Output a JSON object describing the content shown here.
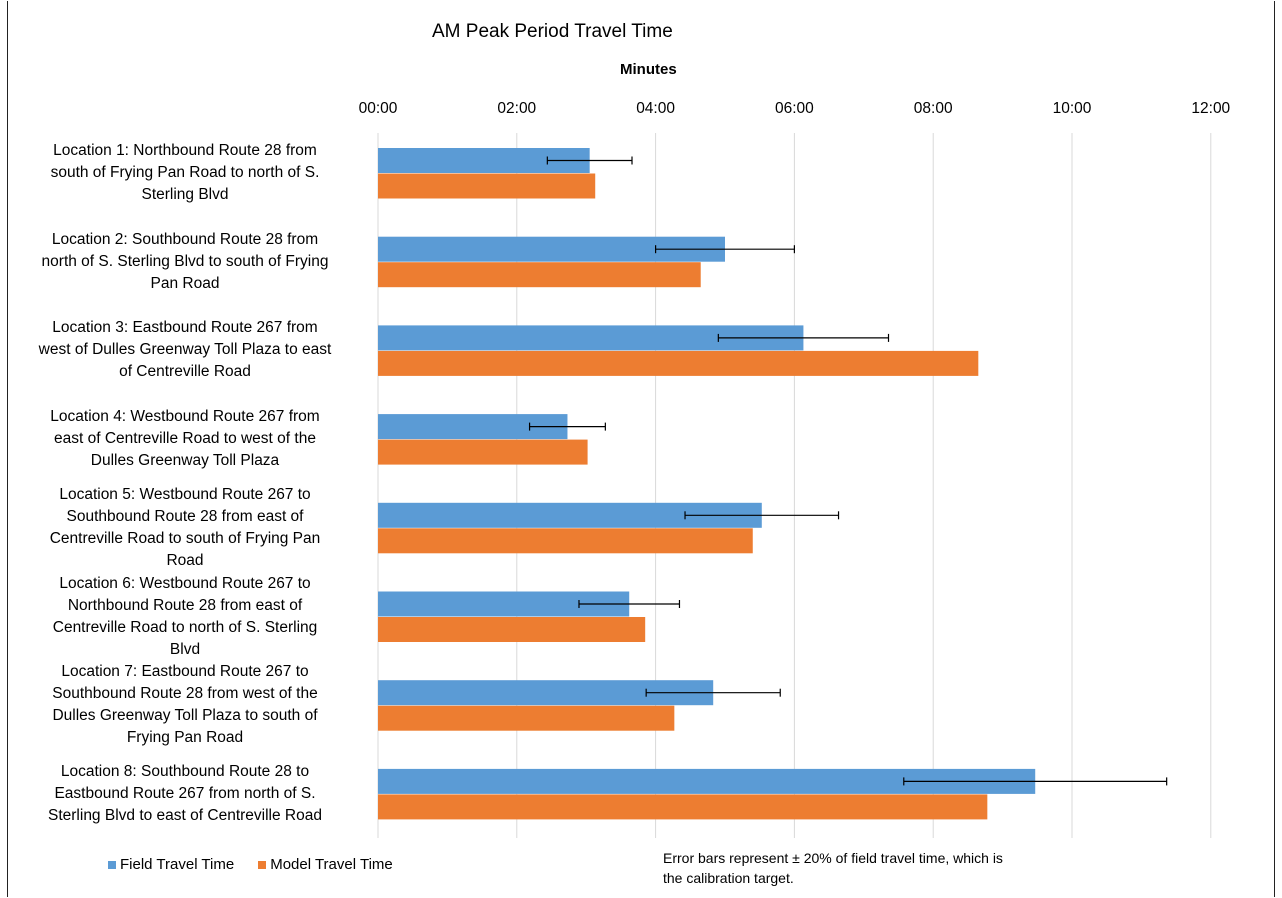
{
  "chart_data": {
    "type": "bar",
    "orientation": "horizontal",
    "title": "AM Peak Period Travel Time",
    "xlabel": "Minutes",
    "ylabel": "",
    "xlim": [
      0,
      12
    ],
    "x_ticks": [
      "00:00",
      "02:00",
      "04:00",
      "06:00",
      "08:00",
      "10:00",
      "12:00"
    ],
    "x_tick_values": [
      0,
      2,
      4,
      6,
      8,
      10,
      12
    ],
    "grid": "vertical",
    "legend_position": "bottom-left",
    "categories": [
      "Location 1: Northbound Route 28 from south of Frying Pan Road to north of S. Sterling Blvd",
      "Location 2: Southbound Route 28 from north of S. Sterling Blvd to south of Frying Pan Road",
      "Location 3: Eastbound Route 267 from west of Dulles Greenway Toll Plaza to east of Centreville Road",
      "Location 4: Westbound Route 267 from east of Centreville Road to west of the Dulles Greenway Toll Plaza",
      "Location 5: Westbound Route 267 to Southbound Route 28 from east of Centreville Road to south of Frying Pan Road",
      "Location 6: Westbound Route 267 to Northbound Route 28 from east of Centreville Road to north of S. Sterling Blvd",
      "Location 7: Eastbound Route 267 to Southbound Route 28 from west of the Dulles Greenway Toll Plaza to south of Frying Pan Road",
      "Location 8: Southbound Route 28 to Eastbound Route 267 from north of S. Sterling Blvd to east of Centreville Road"
    ],
    "category_label_lines": [
      [
        "Location 1: Northbound Route 28 from",
        "south of Frying Pan Road to north of S.",
        "Sterling Blvd"
      ],
      [
        "Location 2: Southbound Route 28 from",
        "north of S. Sterling Blvd to south of Frying",
        "Pan Road"
      ],
      [
        "Location 3: Eastbound Route 267 from",
        "west of Dulles Greenway Toll Plaza to east",
        "of Centreville Road"
      ],
      [
        "Location 4: Westbound Route 267 from",
        "east of Centreville Road to west of the",
        "Dulles Greenway Toll Plaza"
      ],
      [
        "Location 5: Westbound Route 267 to",
        "Southbound Route 28 from east of",
        "Centreville Road to south of Frying Pan",
        "Road"
      ],
      [
        "Location 6: Westbound Route 267 to",
        "Northbound Route 28 from east of",
        "Centreville Road to north of S. Sterling",
        "Blvd"
      ],
      [
        "Location 7: Eastbound Route 267 to",
        "Southbound Route 28 from west of the",
        "Dulles Greenway Toll Plaza to south of",
        "Frying Pan Road"
      ],
      [
        "Location 8: Southbound Route 28 to",
        "Eastbound Route 267 from north of S.",
        "Sterling Blvd to east of Centreville Road"
      ]
    ],
    "series": [
      {
        "name": "Field Travel Time",
        "color": "#5b9bd5",
        "values": [
          3.05,
          5.0,
          6.13,
          2.73,
          5.53,
          3.62,
          4.83,
          9.47
        ],
        "error_bars": "±20%"
      },
      {
        "name": "Model Travel Time",
        "color": "#ed7d31",
        "values": [
          3.13,
          4.65,
          8.65,
          3.02,
          5.4,
          3.85,
          4.27,
          8.78
        ]
      }
    ],
    "annotation": "Error bars represent ± 20% of field travel time, which is the calibration target."
  }
}
